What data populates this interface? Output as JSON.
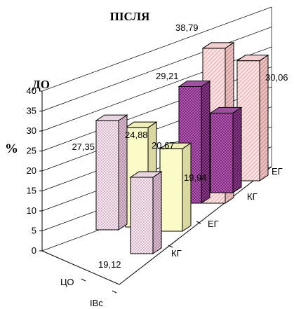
{
  "chart_data": {
    "type": "bar",
    "style": "3d-column",
    "title_top": "ПІСЛЯ",
    "title_left": "ДО",
    "ylabel": "%",
    "ylim": [
      0,
      40
    ],
    "yticks": [
      "0",
      "5",
      "10",
      "15",
      "20",
      "25",
      "30",
      "35",
      "40"
    ],
    "grid": true,
    "series_axis_labels": [
      "ЦО",
      "ІВс"
    ],
    "group_labels": [
      "КГ",
      "ЕГ"
    ],
    "bars": [
      {
        "period": "ДО",
        "group": "КГ",
        "value_label": "27,35",
        "value": 27.35,
        "pattern": "pink-dots"
      },
      {
        "period": "ДО",
        "group": "ЕГ",
        "value_label": "24,88",
        "value": 24.88,
        "pattern": "cream"
      },
      {
        "period": "ПІСЛЯ",
        "group": "КГ",
        "value_label": "19,12",
        "value": 19.12,
        "pattern": "pink-dots"
      },
      {
        "period": "ПІСЛЯ",
        "group": "ЕГ",
        "value_label": "20,67",
        "value": 20.67,
        "pattern": "cream"
      },
      {
        "period": "ДО",
        "group": "КГ",
        "value_label": "29,21",
        "value": 29.21,
        "pattern": "purple-check"
      },
      {
        "period": "ДО",
        "group": "ЕГ",
        "value_label": "38,79",
        "value": 38.79,
        "pattern": "pink-hatch"
      },
      {
        "period": "ПІСЛЯ",
        "group": "КГ",
        "value_label": "19,94",
        "value": 19.94,
        "pattern": "purple-check"
      },
      {
        "period": "ПІСЛЯ",
        "group": "ЕГ",
        "value_label": "30,06",
        "value": 30.06,
        "pattern": "pink-hatch"
      }
    ],
    "colors": {
      "pink_dots": "#f4e6ee",
      "cream": "#fbfbc8",
      "purple": "#8c2c8c",
      "pink_hatch": "#f7d6d6"
    }
  }
}
